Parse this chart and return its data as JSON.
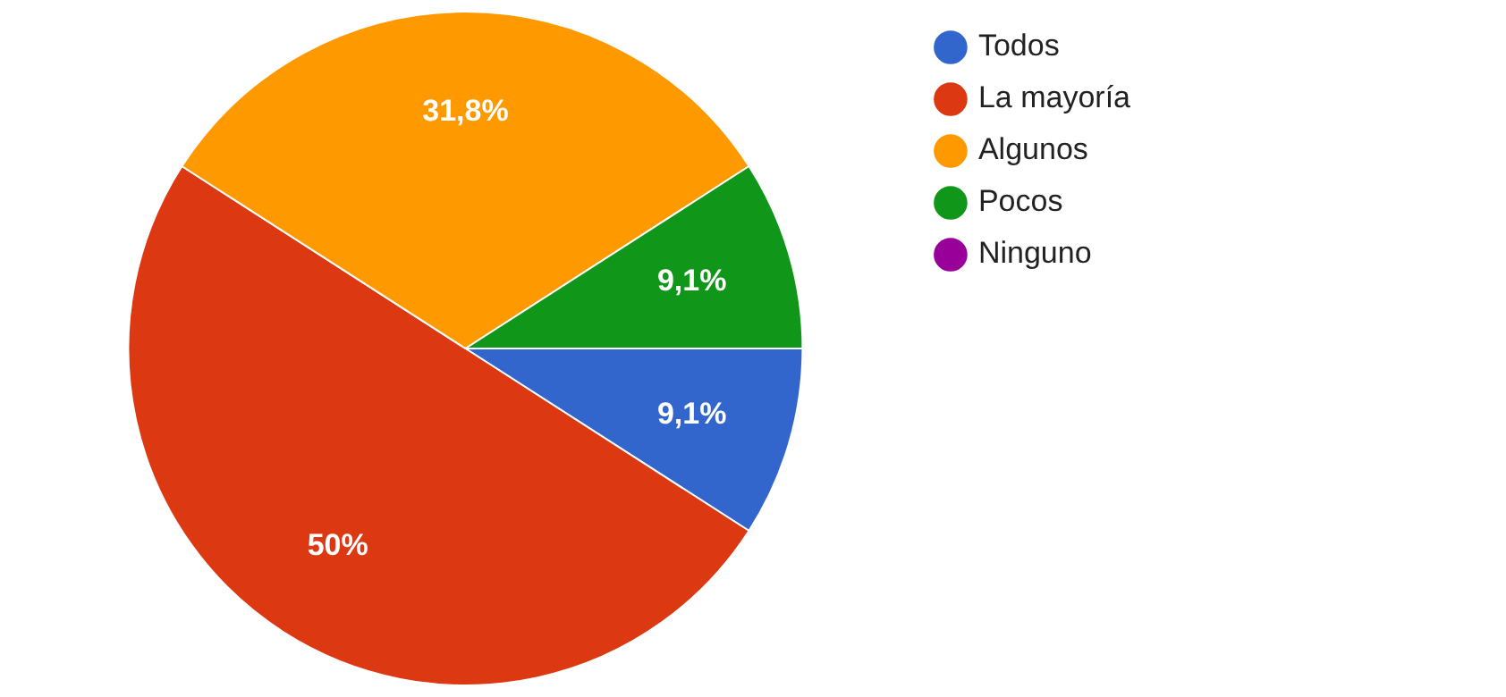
{
  "chart_data": {
    "type": "pie",
    "categories": [
      "Todos",
      "La mayoría",
      "Algunos",
      "Pocos",
      "Ninguno"
    ],
    "values": [
      9.1,
      50,
      31.8,
      9.1,
      0
    ],
    "colors": [
      "#3366cc",
      "#dc3912",
      "#ff9900",
      "#109618",
      "#990099"
    ],
    "value_labels": [
      "9,1%",
      "50%",
      "31,8%",
      "9,1%",
      null
    ],
    "legend": "top right"
  }
}
